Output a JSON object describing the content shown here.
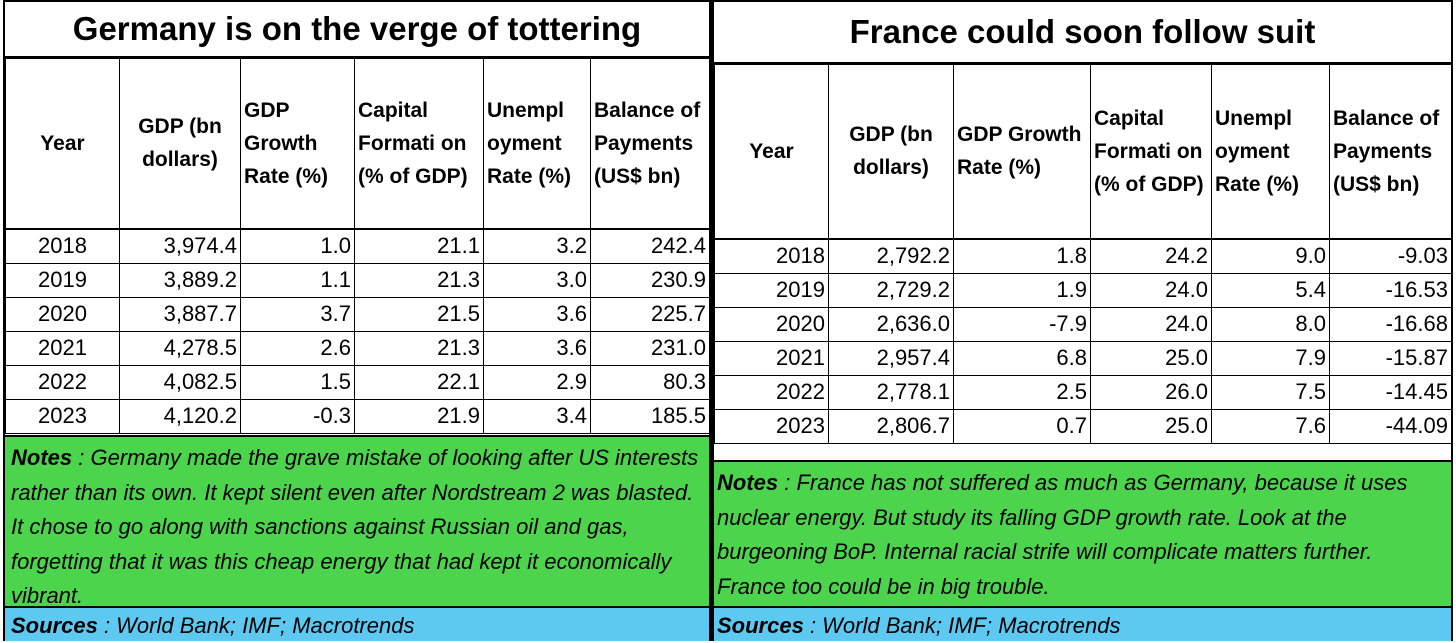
{
  "germany": {
    "title": "Germany is on the verge of tottering",
    "headers": [
      "Year",
      "GDP (bn dollars)",
      "GDP Growth Rate (%)",
      "Capital Formati on (% of GDP)",
      "Unempl oyment Rate (%)",
      "Balance of Payments (US$ bn)"
    ],
    "rows": [
      [
        "2018",
        "3,974.4",
        "1.0",
        "21.1",
        "3.2",
        "242.4"
      ],
      [
        "2019",
        "3,889.2",
        "1.1",
        "21.3",
        "3.0",
        "230.9"
      ],
      [
        "2020",
        "3,887.7",
        "3.7",
        "21.5",
        "3.6",
        "225.7"
      ],
      [
        "2021",
        "4,278.5",
        "2.6",
        "21.3",
        "3.6",
        "231.0"
      ],
      [
        "2022",
        "4,082.5",
        "1.5",
        "22.1",
        "2.9",
        "80.3"
      ],
      [
        "2023",
        "4,120.2",
        "-0.3",
        "21.9",
        "3.4",
        "185.5"
      ]
    ],
    "notes_label": "Notes",
    "notes_text": " :  Germany made the grave mistake of looking after US interests rather than its own. It kept silent even after Nordstream 2 was blasted. It chose to go along with sanctions against Russian oil and gas, forgetting that it was this cheap energy that had kept it economically vibrant.",
    "sources_label": "Sources",
    "sources_text": " :  World Bank; IMF;  Macrotrends"
  },
  "france": {
    "title": "France could soon follow suit",
    "headers": [
      "Year",
      "GDP (bn dollars)",
      "GDP Growth Rate (%)",
      "Capital Formati on (% of GDP)",
      "Unempl oyment Rate (%)",
      "Balance of Payments (US$ bn)"
    ],
    "rows": [
      [
        "2018",
        "2,792.2",
        "1.8",
        "24.2",
        "9.0",
        "-9.03"
      ],
      [
        "2019",
        "2,729.2",
        "1.9",
        "24.0",
        "5.4",
        "-16.53"
      ],
      [
        "2020",
        "2,636.0",
        "-7.9",
        "24.0",
        "8.0",
        "-16.68"
      ],
      [
        "2021",
        "2,957.4",
        "6.8",
        "25.0",
        "7.9",
        "-15.87"
      ],
      [
        "2022",
        "2,778.1",
        "2.5",
        "26.0",
        "7.5",
        "-14.45"
      ],
      [
        "2023",
        "2,806.7",
        "0.7",
        "25.0",
        "7.6",
        "-44.09"
      ]
    ],
    "notes_label": "Notes",
    "notes_text": " : France has not suffered as much as Germany, because it uses nuclear energy. But study its falling GDP growth rate. Look at the burgeoning BoP. Internal racial strife will complicate matters further. France too could be in big trouble.",
    "sources_label": "Sources",
    "sources_text": " : World Bank; IMF;  Macrotrends"
  },
  "colors": {
    "notes_bg": "#4cd44c",
    "sources_bg": "#5dc9f0"
  }
}
